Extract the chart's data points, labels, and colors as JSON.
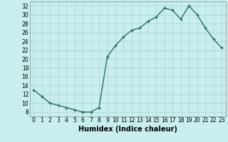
{
  "x": [
    0,
    1,
    2,
    3,
    4,
    5,
    6,
    7,
    8,
    9,
    10,
    11,
    12,
    13,
    14,
    15,
    16,
    17,
    18,
    19,
    20,
    21,
    22,
    23
  ],
  "y": [
    13,
    11.5,
    10,
    9.5,
    9,
    8.5,
    8,
    8,
    9,
    20.5,
    23,
    25,
    26.5,
    27,
    28.5,
    29.5,
    31.5,
    31,
    29,
    32,
    30,
    27,
    24.5,
    22.5
  ],
  "line_color": "#2d6e5e",
  "marker": "+",
  "marker_size": 3.5,
  "bg_color": "#c8eeee",
  "grid_color": "#b0d8d8",
  "xlabel": "Humidex (Indice chaleur)",
  "xlim": [
    -0.5,
    23.5
  ],
  "ylim": [
    7,
    33
  ],
  "yticks": [
    8,
    10,
    12,
    14,
    16,
    18,
    20,
    22,
    24,
    26,
    28,
    30,
    32
  ],
  "xticks": [
    0,
    1,
    2,
    3,
    4,
    5,
    6,
    7,
    8,
    9,
    10,
    11,
    12,
    13,
    14,
    15,
    16,
    17,
    18,
    19,
    20,
    21,
    22,
    23
  ],
  "xlabel_fontsize": 7,
  "tick_fontsize": 5.5,
  "linewidth": 1.0
}
